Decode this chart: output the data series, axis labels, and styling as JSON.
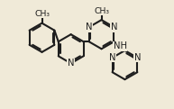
{
  "bg_color": "#f0ead8",
  "bond_color": "#1e1e1e",
  "bond_lw": 1.5,
  "dbl_sep": 0.1,
  "fontsize": 7.2,
  "figsize": [
    1.93,
    1.21
  ],
  "dpi": 100,
  "xlim": [
    -0.5,
    9.5
  ],
  "ylim": [
    1.5,
    8.2
  ]
}
